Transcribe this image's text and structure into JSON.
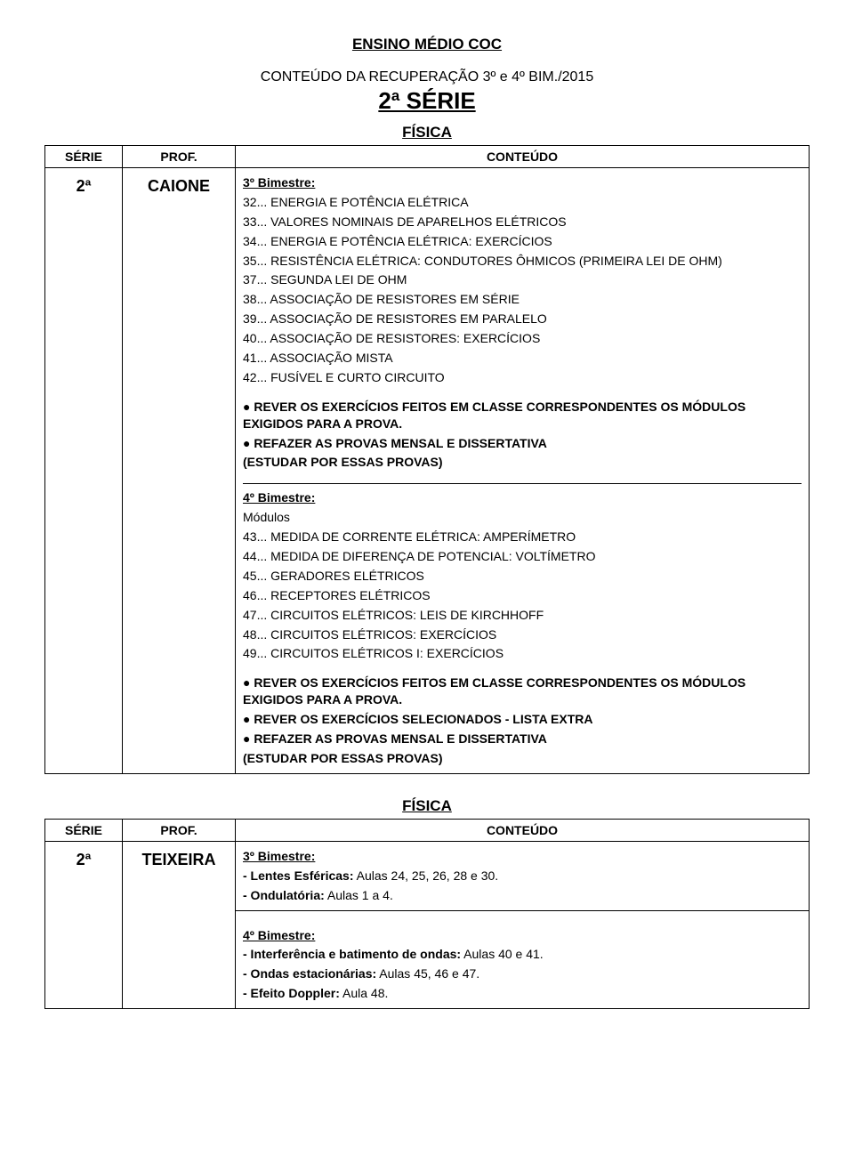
{
  "doc": {
    "title": "ENSINO MÉDIO COC",
    "subtitle": "CONTEÚDO DA RECUPERAÇÃO 3º e 4º BIM./2015",
    "serie_big": "2ª SÉRIE"
  },
  "table1": {
    "subject": "FÍSICA",
    "col_serie": "SÉRIE",
    "col_prof": "PROF.",
    "col_conteudo": "CONTEÚDO",
    "serie": "2ª",
    "prof": "CAIONE",
    "bim3_label": "3º Bimestre:",
    "bim3_lines": [
      "32... ENERGIA E POTÊNCIA ELÉTRICA",
      "33... VALORES NOMINAIS DE APARELHOS ELÉTRICOS",
      "34... ENERGIA E POTÊNCIA ELÉTRICA: EXERCÍCIOS",
      "35... RESISTÊNCIA ELÉTRICA: CONDUTORES ÔHMICOS (PRIMEIRA LEI DE OHM)",
      "37... SEGUNDA LEI DE OHM",
      "38... ASSOCIAÇÃO DE RESISTORES EM SÉRIE",
      "39... ASSOCIAÇÃO DE RESISTORES EM PARALELO",
      "40... ASSOCIAÇÃO DE RESISTORES: EXERCÍCIOS",
      "41... ASSOCIAÇÃO MISTA",
      "42... FUSÍVEL E CURTO CIRCUITO"
    ],
    "bim3_bullets": [
      "● REVER OS EXERCÍCIOS FEITOS EM CLASSE CORRESPONDENTES OS MÓDULOS EXIGIDOS PARA A PROVA.",
      "● REFAZER AS PROVAS  MENSAL E DISSERTATIVA",
      " (ESTUDAR POR ESSAS PROVAS)"
    ],
    "bim4_label": "4º Bimestre:",
    "bim4_sub": "Módulos",
    "bim4_lines": [
      "43... MEDIDA DE CORRENTE ELÉTRICA: AMPERÍMETRO",
      "44... MEDIDA DE DIFERENÇA DE POTENCIAL: VOLTÍMETRO",
      "45... GERADORES ELÉTRICOS",
      "46... RECEPTORES ELÉTRICOS",
      "47... CIRCUITOS ELÉTRICOS: LEIS DE KIRCHHOFF",
      "48... CIRCUITOS ELÉTRICOS: EXERCÍCIOS",
      "49... CIRCUITOS ELÉTRICOS I: EXERCÍCIOS"
    ],
    "bim4_bullets": [
      "● REVER OS EXERCÍCIOS FEITOS EM CLASSE CORRESPONDENTES OS MÓDULOS EXIGIDOS PARA A PROVA.",
      "● REVER OS EXERCÍCIOS SELECIONADOS - LISTA EXTRA",
      "● REFAZER AS PROVAS  MENSAL E DISSERTATIVA",
      "(ESTUDAR POR ESSAS PROVAS)"
    ]
  },
  "table2": {
    "subject": "FÍSICA",
    "col_serie": "SÉRIE",
    "col_prof": "PROF.",
    "col_conteudo": "CONTEÚDO",
    "serie": "2ª",
    "prof": "TEIXEIRA",
    "bim3_label": "3º Bimestre:",
    "bim3_l1_label": "- Lentes Esféricas:",
    "bim3_l1_text": " Aulas 24, 25, 26, 28 e 30.",
    "bim3_l2_label": "- Ondulatória:",
    "bim3_l2_text": " Aulas 1 a 4.",
    "bim4_label": "4º Bimestre:",
    "bim4_l1_label": "- Interferência e batimento de ondas:",
    "bim4_l1_text": " Aulas 40 e 41.",
    "bim4_l2_label": "- Ondas estacionárias:",
    "bim4_l2_text": " Aulas 45, 46 e 47.",
    "bim4_l3_label": "- Efeito Doppler:",
    "bim4_l3_text": " Aula 48."
  }
}
